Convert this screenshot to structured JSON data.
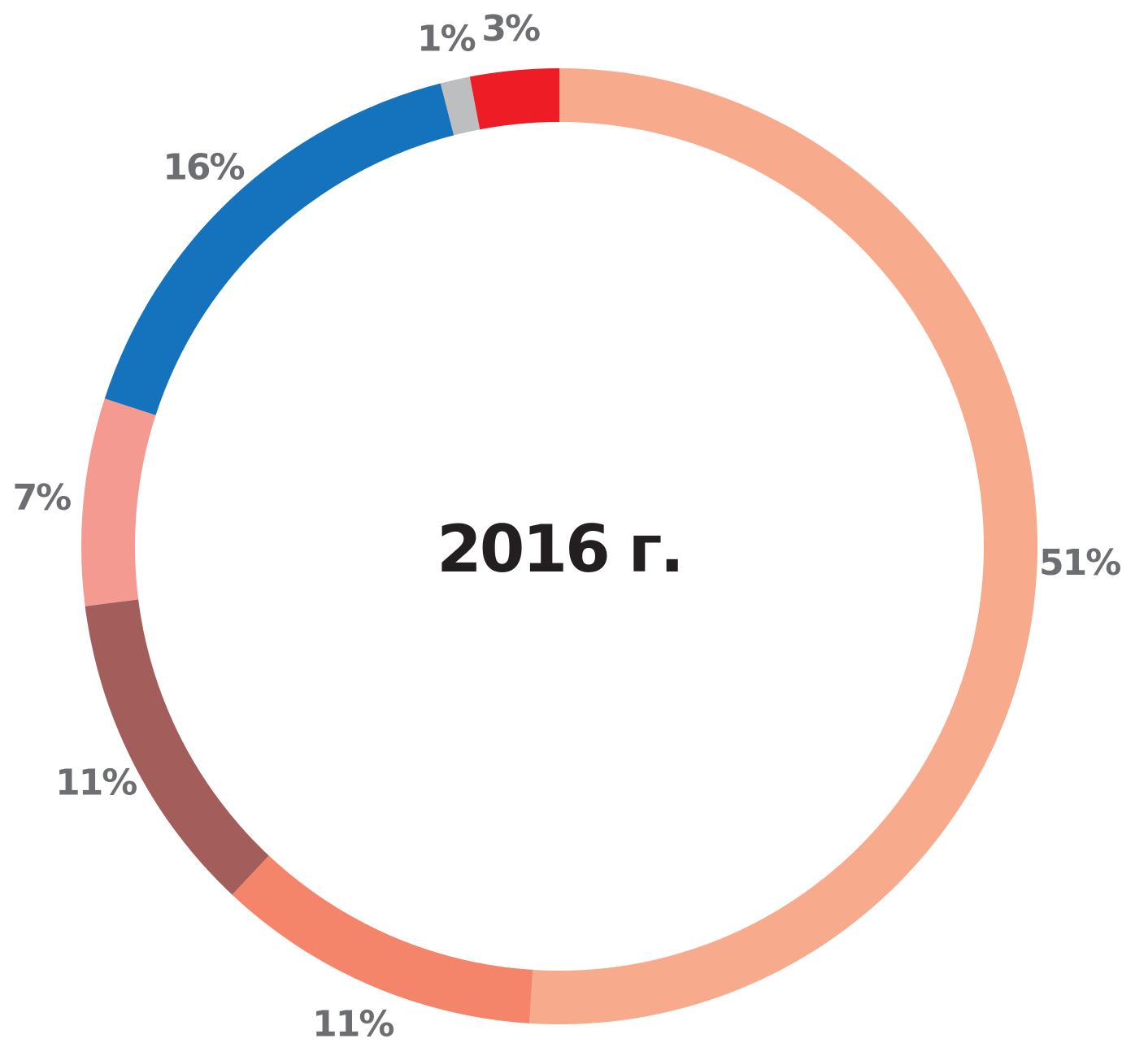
{
  "chart_data": {
    "type": "pie",
    "variant": "donut",
    "center_text": "2016 г.",
    "slices": [
      {
        "label": "51%",
        "value": 51,
        "color": "#f7aa8c"
      },
      {
        "label": "11%",
        "value": 11,
        "color": "#f4856a"
      },
      {
        "label": "11%",
        "value": 11,
        "color": "#a35e5b"
      },
      {
        "label": "7%",
        "value": 7,
        "color": "#f59a91"
      },
      {
        "label": "16%",
        "value": 16,
        "color": "#1473bc"
      },
      {
        "label": "1%",
        "value": 1,
        "color": "#bcbec0"
      },
      {
        "label": "3%",
        "value": 3,
        "color": "#ee1c25"
      }
    ],
    "start": "top",
    "direction": "clockwise",
    "legend": "none"
  }
}
